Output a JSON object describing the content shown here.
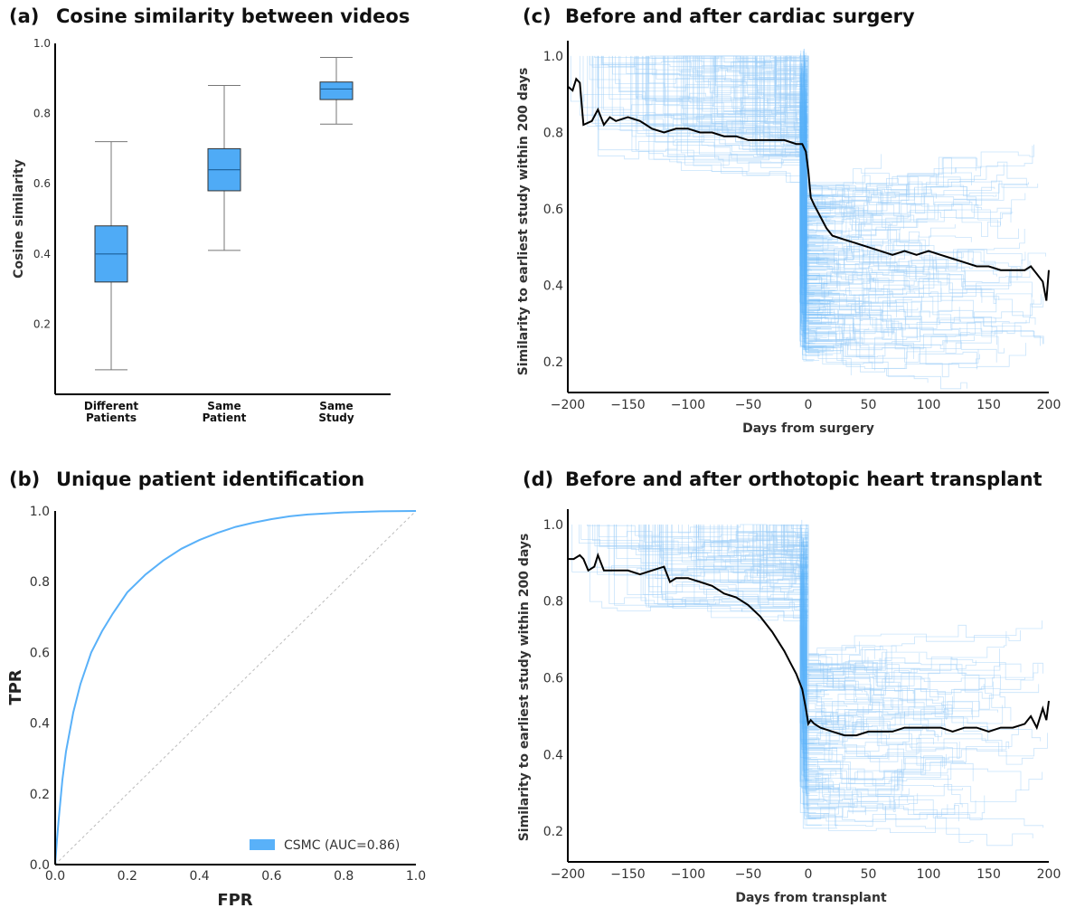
{
  "colors": {
    "accent": "#59b1f9",
    "box_fill": "#4fabf6",
    "trace_light": "#9dcef7",
    "mean_line": "#000000",
    "diagonal": "#bbbbbb"
  },
  "chart_data": [
    {
      "panel_label": "(a)",
      "title": "Cosine similarity between videos",
      "type": "box",
      "xlabel": "",
      "ylabel": "Cosine similarity",
      "ylim": [
        0.0,
        1.0
      ],
      "yticks": [
        "0.2",
        "0.4",
        "0.6",
        "0.8",
        "1.0"
      ],
      "categories": [
        [
          "Different",
          "Patients"
        ],
        [
          "Same",
          "Patient"
        ],
        [
          "Same",
          "Study"
        ]
      ],
      "boxes": [
        {
          "whislo": 0.07,
          "q1": 0.32,
          "med": 0.4,
          "q3": 0.48,
          "whishi": 0.72
        },
        {
          "whislo": 0.41,
          "q1": 0.58,
          "med": 0.64,
          "q3": 0.7,
          "whishi": 0.88
        },
        {
          "whislo": 0.77,
          "q1": 0.84,
          "med": 0.87,
          "q3": 0.89,
          "whishi": 0.96
        }
      ],
      "grid": false
    },
    {
      "panel_label": "(b)",
      "title": "Unique patient identification",
      "type": "line",
      "xlabel": "FPR",
      "ylabel": "TPR",
      "xlim": [
        0.0,
        1.0
      ],
      "ylim": [
        0.0,
        1.0
      ],
      "xticks": [
        "0.0",
        "0.2",
        "0.4",
        "0.6",
        "0.8",
        "1.0"
      ],
      "yticks": [
        "0.0",
        "0.2",
        "0.4",
        "0.6",
        "0.8",
        "1.0"
      ],
      "series": [
        {
          "name": "CSMC (AUC=0.86)",
          "x": [
            0,
            0.005,
            0.01,
            0.02,
            0.03,
            0.05,
            0.07,
            0.1,
            0.13,
            0.16,
            0.2,
            0.25,
            0.3,
            0.35,
            0.4,
            0.45,
            0.5,
            0.55,
            0.6,
            0.65,
            0.7,
            0.8,
            0.9,
            1.0
          ],
          "y": [
            0,
            0.07,
            0.13,
            0.24,
            0.32,
            0.43,
            0.51,
            0.6,
            0.66,
            0.71,
            0.77,
            0.82,
            0.86,
            0.893,
            0.918,
            0.938,
            0.955,
            0.967,
            0.977,
            0.985,
            0.99,
            0.996,
            0.999,
            1.0
          ]
        }
      ],
      "reference_line": {
        "x": [
          0,
          1
        ],
        "y": [
          0,
          1
        ]
      },
      "legend_position": "bottom-right",
      "grid": false
    },
    {
      "panel_label": "(c)",
      "title": "Before and after cardiac surgery",
      "type": "line",
      "xlabel": "Days from surgery",
      "ylabel": "Similarity to earliest study within 200 days",
      "xlim": [
        -200,
        200
      ],
      "ylim": [
        0.12,
        1.04
      ],
      "xticks": [
        "−200",
        "−150",
        "−100",
        "−50",
        "0",
        "50",
        "100",
        "150",
        "200"
      ],
      "yticks": [
        "0.2",
        "0.4",
        "0.6",
        "0.8",
        "1.0"
      ],
      "mean_trace": {
        "x": [
          -200,
          -196,
          -193,
          -190,
          -187,
          -180,
          -175,
          -170,
          -165,
          -160,
          -150,
          -140,
          -135,
          -130,
          -120,
          -110,
          -100,
          -90,
          -80,
          -70,
          -60,
          -50,
          -40,
          -30,
          -20,
          -10,
          -5,
          -2,
          0,
          2,
          5,
          10,
          15,
          20,
          30,
          40,
          50,
          60,
          70,
          80,
          90,
          100,
          110,
          120,
          130,
          140,
          150,
          160,
          170,
          180,
          185,
          190,
          195,
          198,
          200
        ],
        "y": [
          0.92,
          0.91,
          0.94,
          0.93,
          0.82,
          0.83,
          0.86,
          0.82,
          0.84,
          0.83,
          0.84,
          0.83,
          0.82,
          0.81,
          0.8,
          0.81,
          0.81,
          0.8,
          0.8,
          0.79,
          0.79,
          0.78,
          0.78,
          0.78,
          0.78,
          0.77,
          0.77,
          0.75,
          0.7,
          0.63,
          0.61,
          0.58,
          0.55,
          0.53,
          0.52,
          0.51,
          0.5,
          0.49,
          0.48,
          0.49,
          0.48,
          0.49,
          0.48,
          0.47,
          0.46,
          0.45,
          0.45,
          0.44,
          0.44,
          0.44,
          0.45,
          0.43,
          0.41,
          0.36,
          0.44
        ]
      },
      "grid": false
    },
    {
      "panel_label": "(d)",
      "title": "Before and after orthotopic heart transplant",
      "type": "line",
      "xlabel": "Days from transplant",
      "ylabel": "Similarity to earliest study within 200 days",
      "xlim": [
        -200,
        200
      ],
      "ylim": [
        0.12,
        1.04
      ],
      "xticks": [
        "−200",
        "−150",
        "−100",
        "−50",
        "0",
        "50",
        "100",
        "150",
        "200"
      ],
      "yticks": [
        "0.2",
        "0.4",
        "0.6",
        "0.8",
        "1.0"
      ],
      "mean_trace": {
        "x": [
          -200,
          -195,
          -190,
          -187,
          -183,
          -178,
          -175,
          -170,
          -160,
          -150,
          -140,
          -130,
          -120,
          -115,
          -110,
          -100,
          -90,
          -80,
          -70,
          -60,
          -50,
          -40,
          -30,
          -20,
          -15,
          -10,
          -5,
          -2,
          0,
          2,
          5,
          10,
          20,
          30,
          40,
          50,
          60,
          70,
          80,
          90,
          100,
          110,
          120,
          130,
          140,
          150,
          160,
          170,
          180,
          185,
          190,
          195,
          198,
          200
        ],
        "y": [
          0.91,
          0.91,
          0.92,
          0.91,
          0.88,
          0.89,
          0.92,
          0.88,
          0.88,
          0.88,
          0.87,
          0.88,
          0.89,
          0.85,
          0.86,
          0.86,
          0.85,
          0.84,
          0.82,
          0.81,
          0.79,
          0.76,
          0.72,
          0.67,
          0.64,
          0.61,
          0.57,
          0.52,
          0.48,
          0.49,
          0.48,
          0.47,
          0.46,
          0.45,
          0.45,
          0.46,
          0.46,
          0.46,
          0.47,
          0.47,
          0.47,
          0.47,
          0.46,
          0.47,
          0.47,
          0.46,
          0.47,
          0.47,
          0.48,
          0.5,
          0.47,
          0.52,
          0.49,
          0.54
        ]
      },
      "grid": false
    }
  ]
}
